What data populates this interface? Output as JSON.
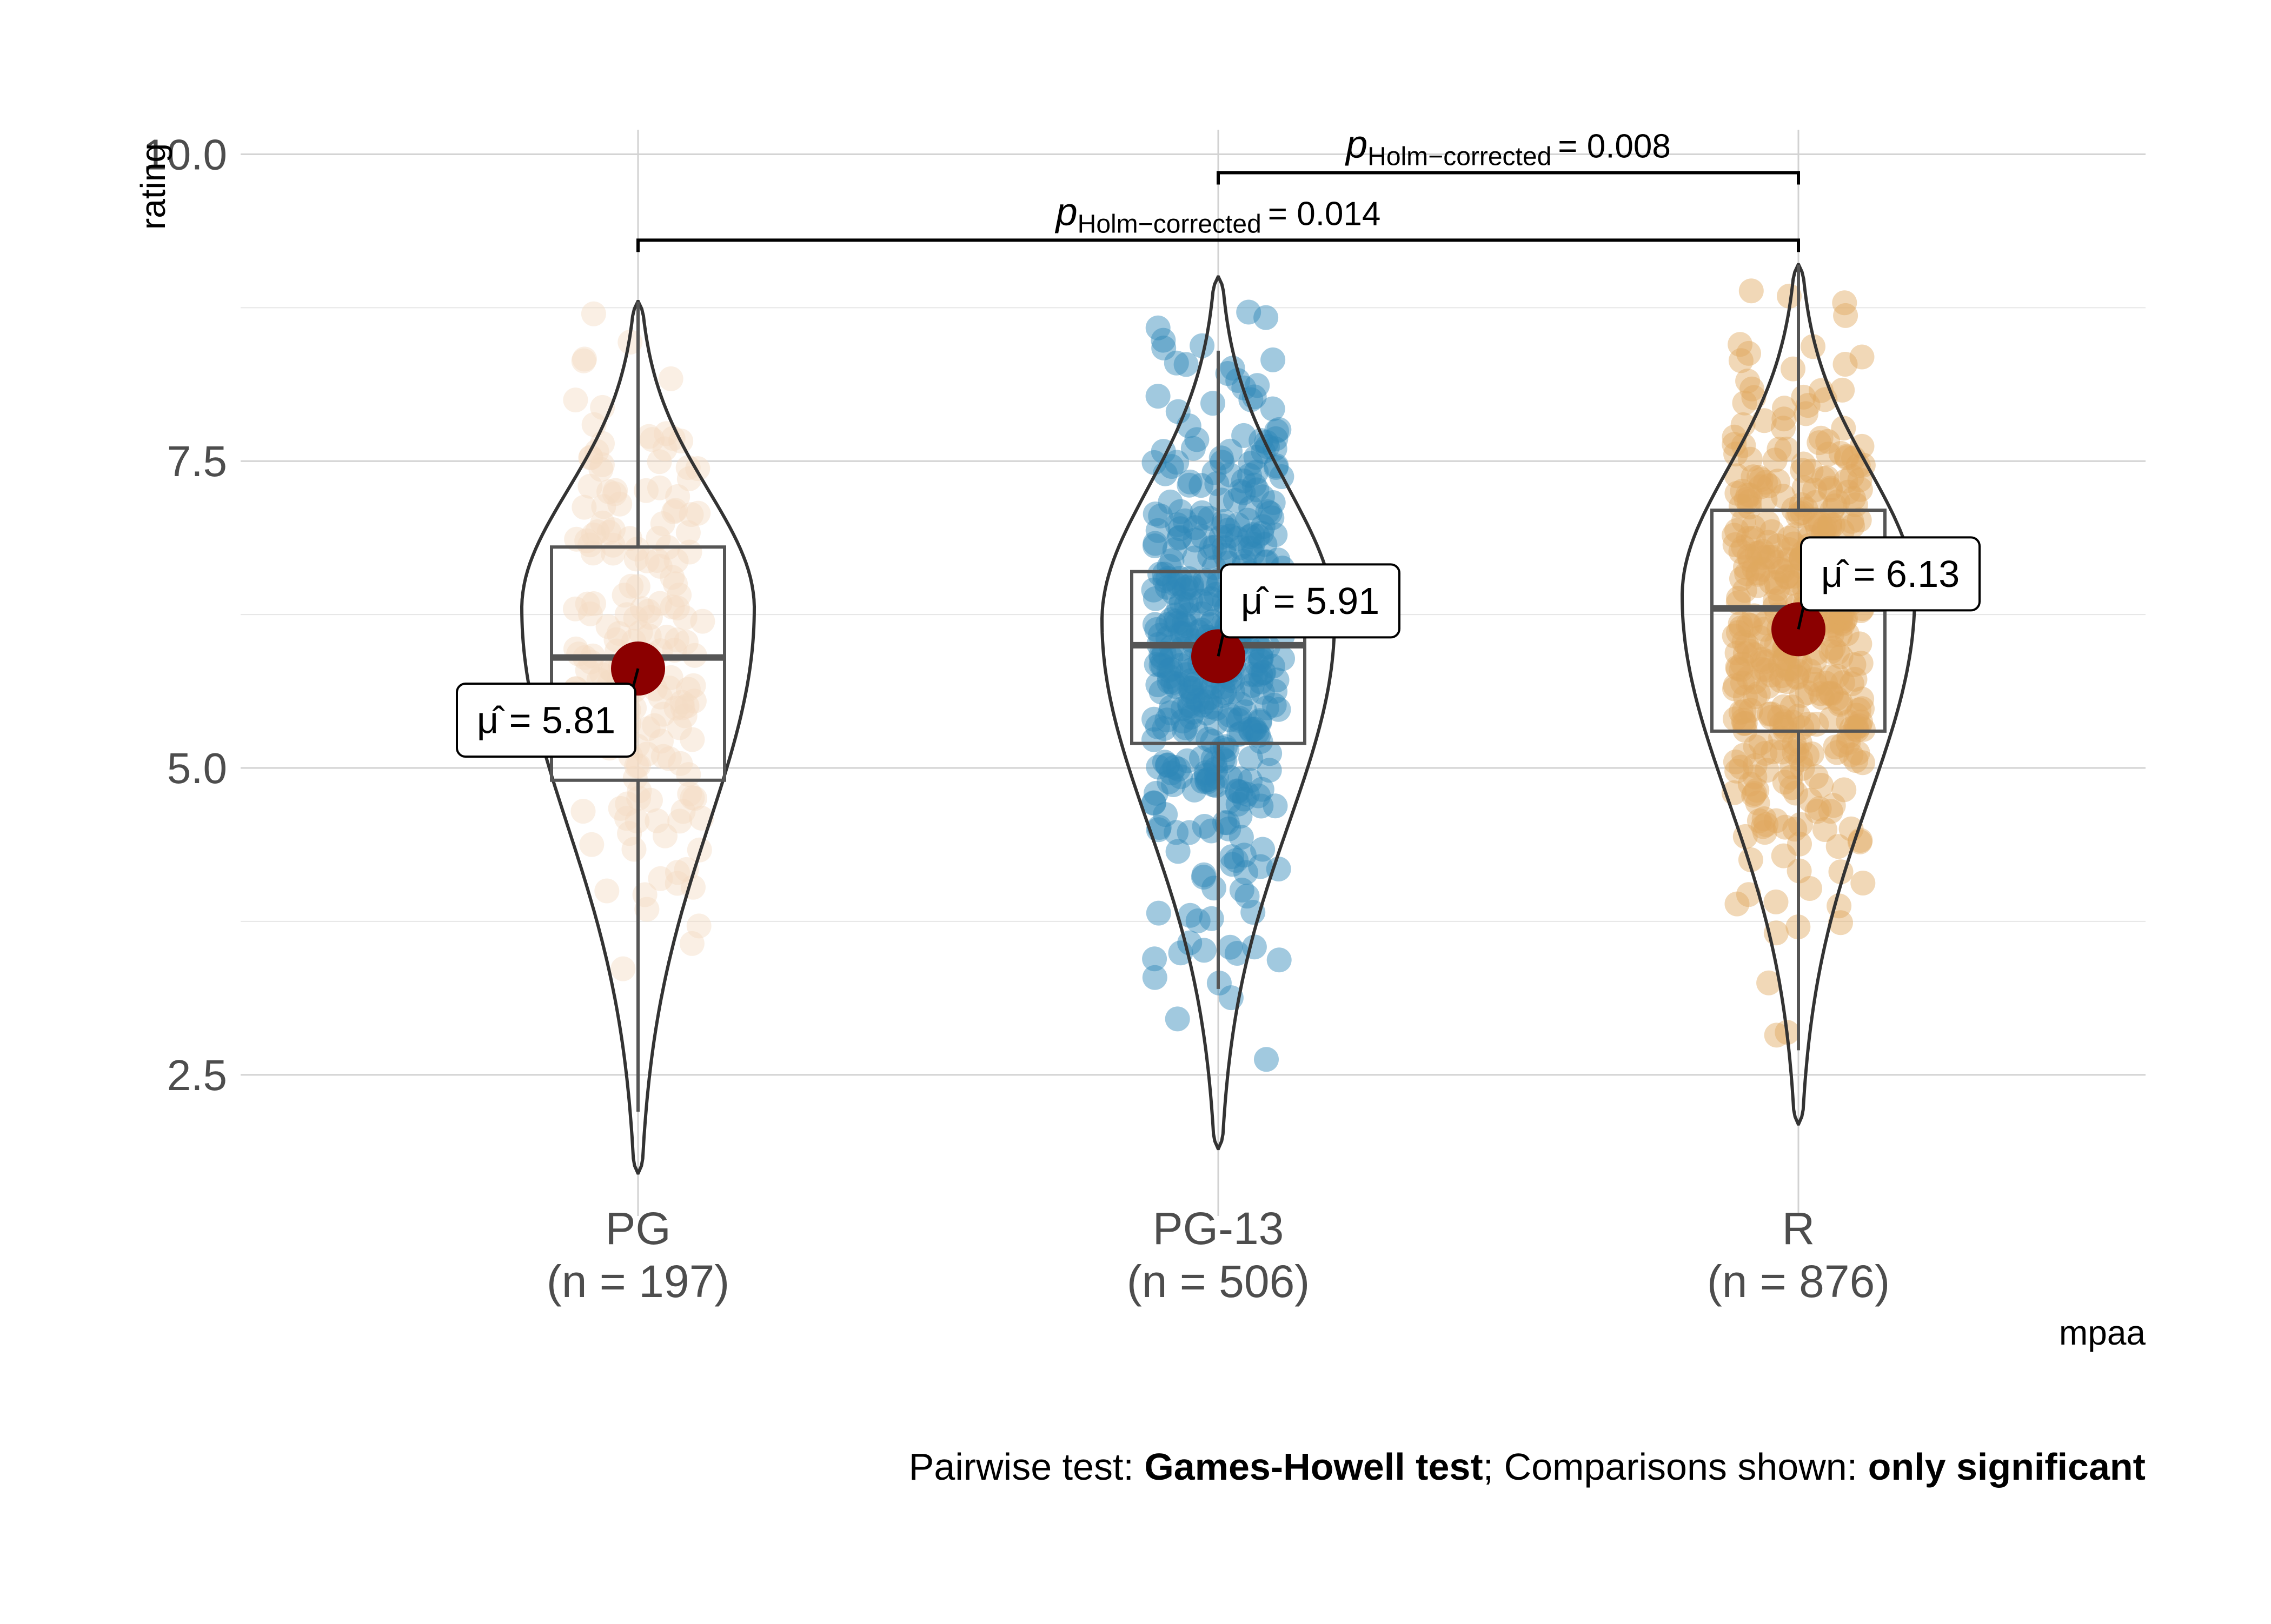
{
  "chart_data": {
    "type": "violin-box-scatter",
    "xlabel": "mpaa",
    "ylabel": "rating",
    "ylim": [
      1.35,
      10.2
    ],
    "yticks": [
      2.5,
      5.0,
      7.5,
      10.0
    ],
    "ytick_labels": [
      "2.5",
      "5.0",
      "7.5",
      "10.0"
    ],
    "grid": true,
    "categories": [
      {
        "name": "PG",
        "n_label": "(n = 197)",
        "color": "#f4dcc4",
        "box": {
          "q1": 4.9,
          "median": 5.9,
          "q3": 6.8,
          "whisker_low": 2.2,
          "whisker_high": 8.8
        },
        "violin": {
          "min": 1.7,
          "max": 8.8,
          "peak": 6.3
        },
        "mean": 5.81,
        "mean_label": "5.81",
        "n_points": 197
      },
      {
        "name": "PG-13",
        "n_label": "(n = 506)",
        "color": "#2f88b8",
        "box": {
          "q1": 5.2,
          "median": 6.0,
          "q3": 6.6,
          "whisker_low": 3.2,
          "whisker_high": 8.4
        },
        "violin": {
          "min": 1.9,
          "max": 9.0,
          "peak": 6.2
        },
        "mean": 5.91,
        "mean_label": "5.91",
        "n_points": 506
      },
      {
        "name": "R",
        "n_label": "(n = 876)",
        "color": "#e0a860",
        "box": {
          "q1": 5.3,
          "median": 6.3,
          "q3": 7.1,
          "whisker_low": 2.7,
          "whisker_high": 9.1
        },
        "violin": {
          "min": 2.1,
          "max": 9.1,
          "peak": 6.4
        },
        "mean": 6.13,
        "mean_label": "6.13",
        "n_points": 876
      }
    ],
    "mean_symbol": "μ̂",
    "mean_color": "#8b0000",
    "comparisons": [
      {
        "from": "PG-13",
        "to": "R",
        "y": 9.85,
        "p_label": "p",
        "p_subscript": "Holm−corrected",
        "p_value": "= 0.008"
      },
      {
        "from": "PG",
        "to": "R",
        "y": 9.3,
        "p_label": "p",
        "p_subscript": "Holm−corrected",
        "p_value": "= 0.014"
      }
    ],
    "caption": {
      "parts": [
        {
          "text": "Pairwise test: ",
          "bold": false
        },
        {
          "text": "Games-Howell test",
          "bold": true
        },
        {
          "text": "; Comparisons shown: ",
          "bold": false
        },
        {
          "text": "only significant",
          "bold": true
        }
      ]
    }
  }
}
